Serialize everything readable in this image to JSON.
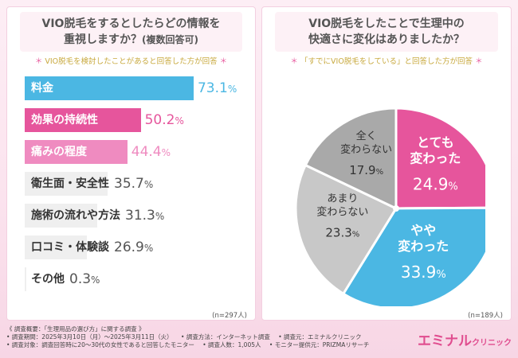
{
  "left": {
    "title_line1": "VIO脱毛をするとしたらどの情報を",
    "title_line2": "重視しますか？",
    "title_sub": "(複数回答可)",
    "note_star": "＊",
    "note": "VIO脱毛を検討したことがあると回答した方が回答",
    "base": "(n=297人)"
  },
  "right": {
    "title_line1": "VIO脱毛をしたことで生理中の",
    "title_line2": "快適さに変化はありましたか？",
    "note_star": "＊",
    "note": "「すでにVIO脱毛をしている」と回答した方が回答",
    "base": "(n=189人)"
  },
  "chart_data": [
    {
      "type": "bar",
      "orientation": "horizontal",
      "title": "VIO脱毛をするとしたらどの情報を重視しますか？(複数回答可)",
      "categories": [
        "料金",
        "効果の持続性",
        "痛みの程度",
        "衛生面・安全性",
        "施術の流れや方法",
        "口コミ・体験談",
        "その他"
      ],
      "values": [
        73.1,
        50.2,
        44.4,
        35.7,
        31.3,
        26.9,
        0.3
      ],
      "value_labels": [
        "73.1",
        "50.2",
        "44.4",
        "35.7",
        "31.3",
        "26.9",
        "0.3"
      ],
      "unit": "%",
      "colors": [
        "#4bb7e3",
        "#e6559c",
        "#ef8bc0",
        "#efefef",
        "#efefef",
        "#efefef",
        "#efefef"
      ],
      "label_colors": [
        "#ffffff",
        "#ffffff",
        "#ffffff",
        "#333333",
        "#333333",
        "#333333",
        "#333333"
      ],
      "value_colors": [
        "#4bb7e3",
        "#e6559c",
        "#ef8bc0",
        "#555555",
        "#555555",
        "#555555",
        "#555555"
      ],
      "xlim": [
        0,
        100
      ]
    },
    {
      "type": "pie",
      "title": "VIO脱毛をしたことで生理中の快適さに変化はありましたか？",
      "labels": [
        "とても変わった",
        "やや変わった",
        "あまり変わらない",
        "全く変わらない"
      ],
      "label_lines": [
        [
          "とても",
          "変わった"
        ],
        [
          "やや",
          "変わった"
        ],
        [
          "あまり",
          "変わらない"
        ],
        [
          "全く",
          "変わらない"
        ]
      ],
      "values": [
        24.9,
        33.9,
        23.3,
        17.9
      ],
      "value_labels": [
        "24.9",
        "33.9",
        "23.3",
        "17.9"
      ],
      "unit": "%",
      "colors": [
        "#e6559c",
        "#4bb7e3",
        "#c8c8c8",
        "#a9a9a9"
      ],
      "text_colors": [
        "#ffffff",
        "#ffffff",
        "#333333",
        "#333333"
      ],
      "start": "12 o'clock, clockwise",
      "hole": true
    }
  ],
  "footer": {
    "line1": "《 調査概要：「生理用品の選び方」に関する調査 》",
    "items_row2": [
      "• 調査期間：2025年3月10日（月）～2025年3月11日（火）",
      "• 調査方法：インターネット調査",
      "• 調査元：エミナルクリニック"
    ],
    "items_row3": [
      "• 調査対象：調査回答時に20〜30代の女性であると回答したモニター",
      "• 調査人数：1,005人",
      "• モニター提供元：PRIZMAリサーチ"
    ]
  },
  "logo": {
    "main": "エミナル",
    "sub": "クリニック"
  },
  "colors": {
    "pink": "#e6559c",
    "blue": "#4bb7e3",
    "light_pink": "#ef8bc0",
    "gold": "#c8a93e"
  }
}
